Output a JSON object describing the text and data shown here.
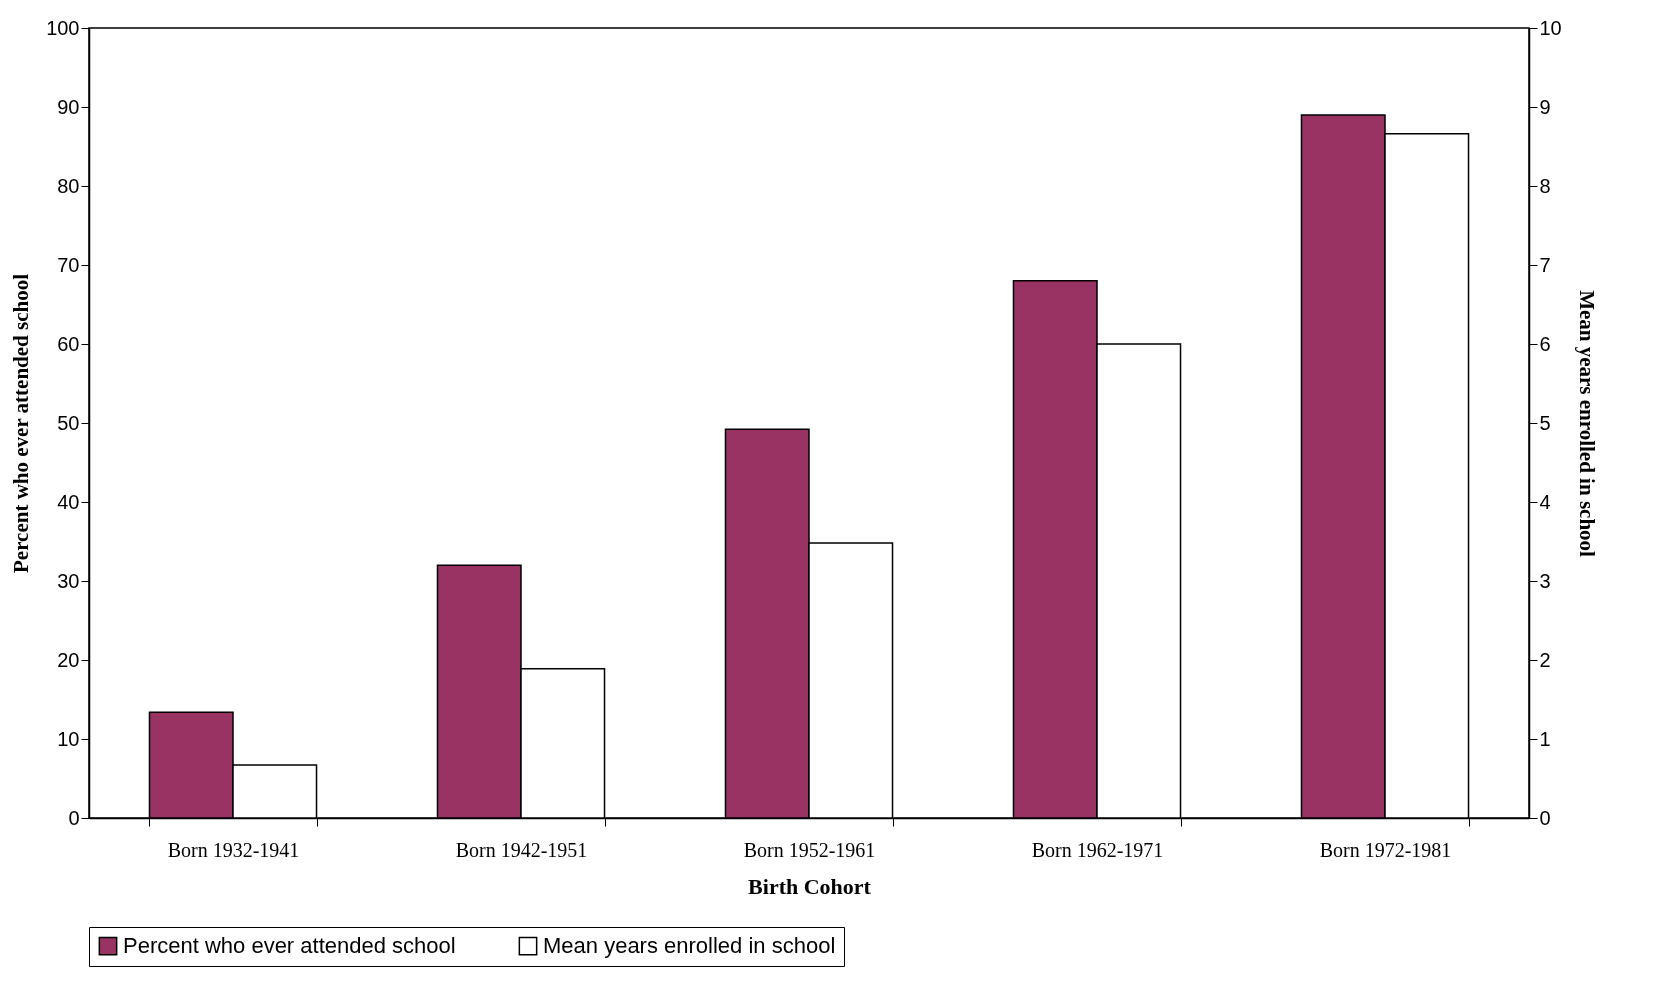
{
  "chart_data": {
    "type": "bar",
    "xlabel": "Birth Cohort",
    "ylabel": "Percent who ever attended school",
    "y2label": "Mean years enrolled in school",
    "categories": [
      "Born 1932-1941",
      "Born 1942-1951",
      "Born 1952-1961",
      "Born 1962-1971",
      "Born 1972-1981"
    ],
    "series": [
      {
        "name": "Percent who ever attended school",
        "color": "#983363",
        "values": [
          13.4,
          32.0,
          49.2,
          68.0,
          89.0
        ]
      },
      {
        "name": "Mean years enrolled in school",
        "color": "#ffffff",
        "axis": "y2",
        "values": [
          0.67,
          1.89,
          3.48,
          6.0,
          8.66
        ]
      }
    ],
    "ylim": [
      0,
      100
    ],
    "yticks": [
      0,
      10,
      20,
      30,
      40,
      50,
      60,
      70,
      80,
      90,
      100
    ],
    "y2lim": [
      0,
      10
    ],
    "y2ticks": [
      0,
      1,
      2,
      3,
      4,
      5,
      6,
      7,
      8,
      9,
      10
    ],
    "grid": false,
    "legend": "bottom"
  }
}
